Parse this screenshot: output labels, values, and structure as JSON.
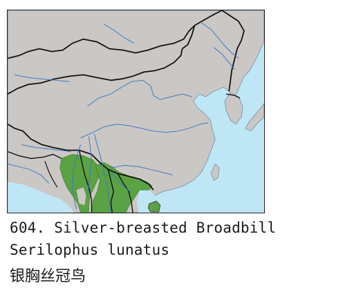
{
  "caption": {
    "line1": "604. Silver-breasted Broadbill",
    "line2": "Serilophus lunatus",
    "line3": "银胸丝冠鸟"
  },
  "colors": {
    "sea": "#bfe6f4",
    "land": "#cbc7c5",
    "range": "#5aa244",
    "border": "#111111",
    "river": "#3d78c4",
    "frame": "#222222"
  },
  "map": {
    "range_species": "Serilophus lunatus"
  }
}
